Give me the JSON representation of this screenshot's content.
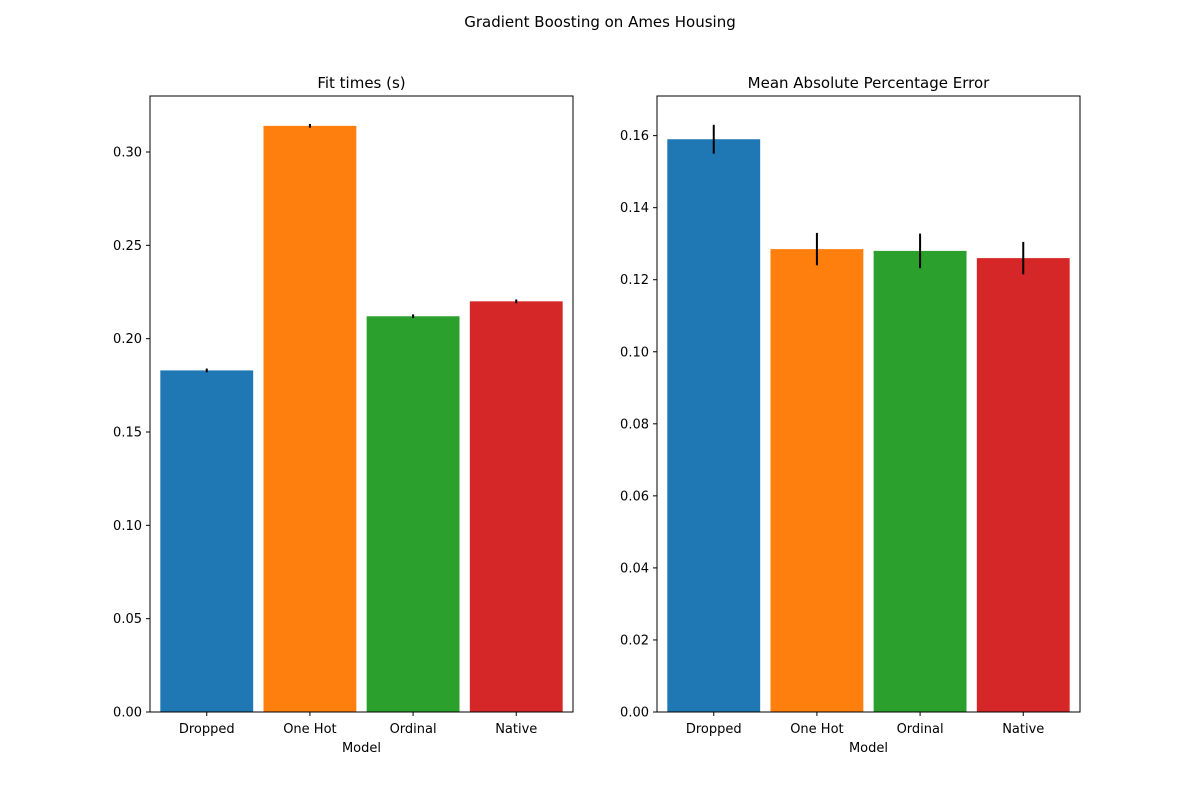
{
  "figure": {
    "title": "Gradient Boosting on Ames Housing"
  },
  "chart_data": [
    {
      "type": "bar",
      "title": "Fit times (s)",
      "xlabel": "Model",
      "ylabel": "",
      "categories": [
        "Dropped",
        "One Hot",
        "Ordinal",
        "Native"
      ],
      "values": [
        0.183,
        0.314,
        0.212,
        0.22
      ],
      "errors": [
        0.001,
        0.001,
        0.001,
        0.001
      ],
      "colors": [
        "#1f77b4",
        "#ff7f0e",
        "#2ca02c",
        "#d62728"
      ],
      "ylim": [
        0,
        0.33
      ],
      "yticks": [
        0.0,
        0.05,
        0.1,
        0.15,
        0.2,
        0.25,
        0.3
      ],
      "ytick_labels": [
        "0.00",
        "0.05",
        "0.10",
        "0.15",
        "0.20",
        "0.25",
        "0.30"
      ],
      "grid": false
    },
    {
      "type": "bar",
      "title": "Mean Absolute Percentage Error",
      "xlabel": "Model",
      "ylabel": "",
      "categories": [
        "Dropped",
        "One Hot",
        "Ordinal",
        "Native"
      ],
      "values": [
        0.159,
        0.1285,
        0.128,
        0.126
      ],
      "errors": [
        0.004,
        0.0045,
        0.0048,
        0.0045
      ],
      "colors": [
        "#1f77b4",
        "#ff7f0e",
        "#2ca02c",
        "#d62728"
      ],
      "ylim": [
        0,
        0.171
      ],
      "yticks": [
        0.0,
        0.02,
        0.04,
        0.06,
        0.08,
        0.1,
        0.12,
        0.14,
        0.16
      ],
      "ytick_labels": [
        "0.00",
        "0.02",
        "0.04",
        "0.06",
        "0.08",
        "0.10",
        "0.12",
        "0.14",
        "0.16"
      ],
      "grid": false
    }
  ]
}
